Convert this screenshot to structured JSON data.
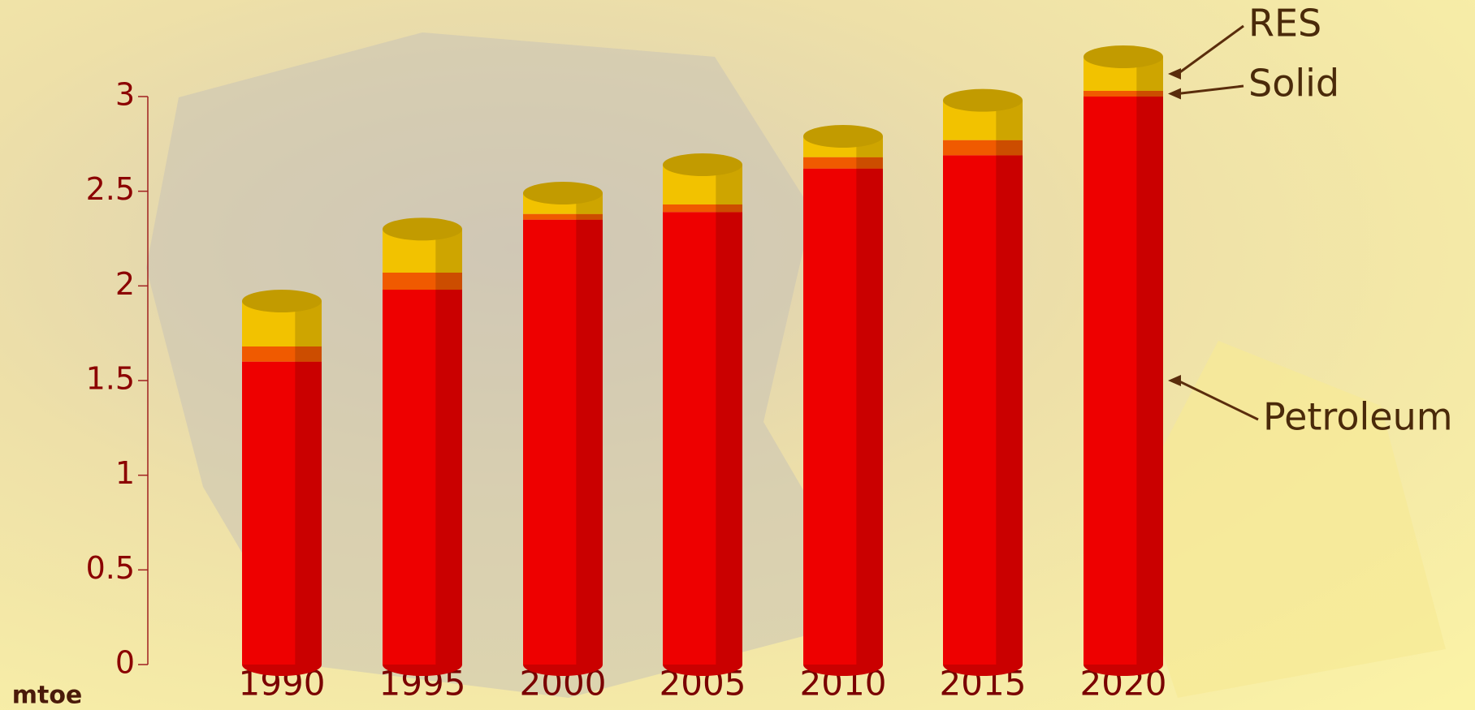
{
  "chart_data": {
    "type": "bar",
    "stacked": true,
    "y_label": "mtoe",
    "categories": [
      "1990",
      "1995",
      "2000",
      "2005",
      "2010",
      "2015",
      "2020"
    ],
    "series": [
      {
        "name": "Petroleum",
        "color": "#ee0000",
        "values": [
          1.6,
          1.98,
          2.35,
          2.39,
          2.62,
          2.69,
          3.0
        ]
      },
      {
        "name": "Solid",
        "color": "#f05a00",
        "values": [
          0.08,
          0.09,
          0.03,
          0.04,
          0.06,
          0.08,
          0.03
        ]
      },
      {
        "name": "RES",
        "color": "#f2c200",
        "values": [
          0.24,
          0.23,
          0.11,
          0.21,
          0.11,
          0.21,
          0.18
        ]
      }
    ],
    "ylim": [
      0,
      3
    ],
    "yticks": [
      0,
      0.5,
      1,
      1.5,
      2,
      2.5,
      3
    ]
  }
}
